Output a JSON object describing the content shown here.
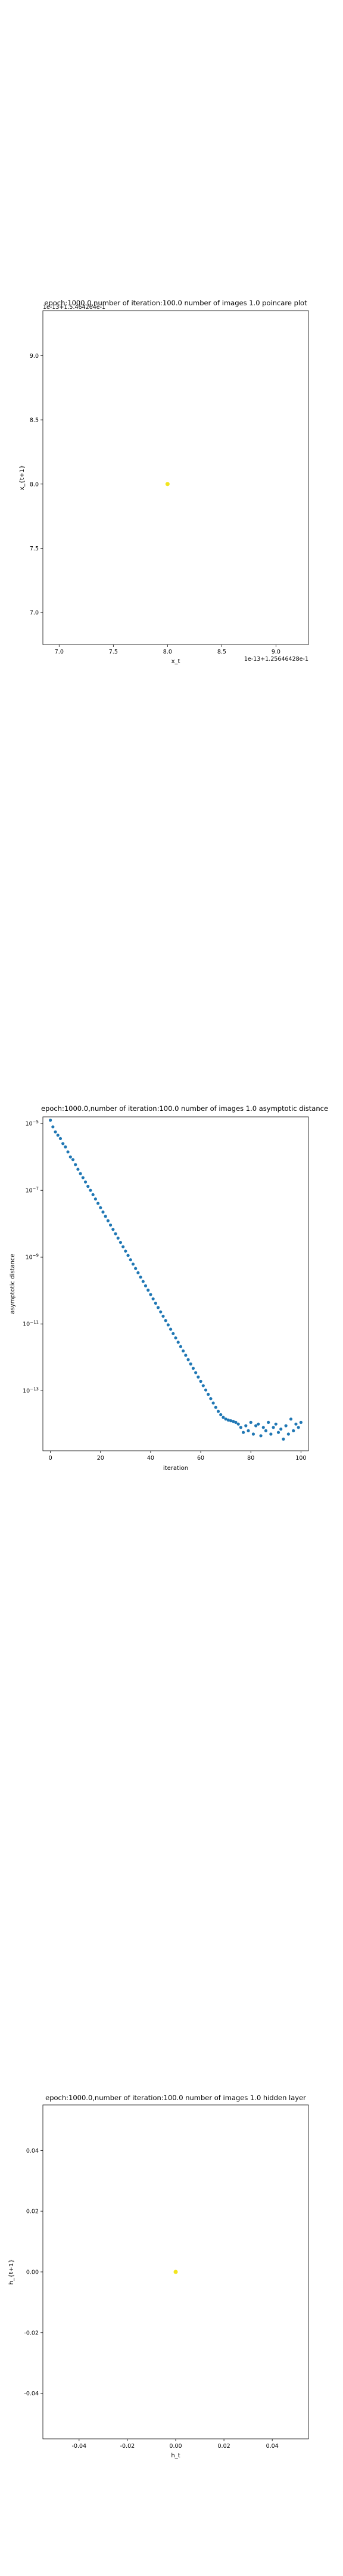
{
  "colors": {
    "point_yellow": "#f2e51e",
    "point_blue": "#1f77b4",
    "axis": "#000000"
  },
  "chart_data": [
    {
      "type": "scatter",
      "title": "epoch:1000.0,number of iteration:100.0 number of images 1.0 poincare plot",
      "offset_text_top": "1e-13+1.5.464264e-1",
      "offset_text_bottom": "1e-13+1.25646428e-1",
      "xlabel": "x_t",
      "ylabel": "x_{t+1}",
      "xlim": [
        6.85,
        9.3
      ],
      "ylim": [
        6.75,
        9.35
      ],
      "xticks": [
        "7.0",
        "7.5",
        "8.0",
        "8.5",
        "9.0"
      ],
      "xtick_values": [
        7.0,
        7.5,
        8.0,
        8.5,
        9.0
      ],
      "yticks": [
        "9.0",
        "8.5",
        "8.0",
        "7.5",
        "7.0"
      ],
      "ytick_values": [
        9.0,
        8.5,
        8.0,
        7.5,
        7.0
      ],
      "points": [
        {
          "x": 8.0,
          "y": 8.0
        }
      ],
      "point_color": "yellow"
    },
    {
      "type": "scatter",
      "title": "epoch:1000.0,number of iteration:100.0  number of images 1.0 asymptotic distance",
      "xlabel": "iteration",
      "ylabel": "asymptotic distance",
      "xlim": [
        -3,
        103
      ],
      "yscale": "log",
      "ylim_log10": [
        -14.8,
        -4.8
      ],
      "xticks": [
        "0",
        "20",
        "40",
        "60",
        "80",
        "100"
      ],
      "xtick_values": [
        0,
        20,
        40,
        60,
        80,
        100
      ],
      "yticks": [
        "10^-5",
        "10^-7",
        "10^-9",
        "10^-11",
        "10^-13"
      ],
      "ytick_log10": [
        -5,
        -7,
        -9,
        -11,
        -13
      ],
      "series_log10": [
        -4.9,
        -5.1,
        -5.25,
        -5.35,
        -5.45,
        -5.6,
        -5.7,
        -5.85,
        -6.0,
        -6.08,
        -6.23,
        -6.37,
        -6.5,
        -6.62,
        -6.75,
        -6.88,
        -7.0,
        -7.13,
        -7.26,
        -7.39,
        -7.52,
        -7.65,
        -7.78,
        -7.91,
        -8.04,
        -8.17,
        -8.3,
        -8.43,
        -8.56,
        -8.69,
        -8.82,
        -8.95,
        -9.08,
        -9.21,
        -9.34,
        -9.47,
        -9.6,
        -9.73,
        -9.86,
        -9.99,
        -10.12,
        -10.25,
        -10.38,
        -10.51,
        -10.64,
        -10.77,
        -10.9,
        -11.03,
        -11.16,
        -11.29,
        -11.42,
        -11.55,
        -11.68,
        -11.81,
        -11.94,
        -12.07,
        -12.2,
        -12.33,
        -12.46,
        -12.59,
        -12.72,
        -12.85,
        -12.98,
        -13.11,
        -13.24,
        -13.37,
        -13.5,
        -13.62,
        -13.72,
        -13.8,
        -13.85,
        -13.88,
        -13.9,
        -13.92,
        -13.95,
        -14.0,
        -14.1,
        -14.25,
        -14.05,
        -14.2,
        -13.95,
        -14.3,
        -14.05,
        -14.0,
        -14.35,
        -14.1,
        -14.2,
        -13.95,
        -14.3,
        -14.1,
        -14.0,
        -14.25,
        -14.15,
        -14.45,
        -14.05,
        -14.3,
        -13.85,
        -14.2,
        -14.0,
        -14.1,
        -13.95
      ],
      "point_color": "blue"
    },
    {
      "type": "scatter",
      "title": "epoch:1000.0,number of iteration:100.0  number of images 1.0 hidden layer",
      "xlabel": "h_t",
      "ylabel": "h_{t+1}",
      "xlim": [
        -0.055,
        0.055
      ],
      "ylim": [
        -0.055,
        0.055
      ],
      "xticks": [
        "-0.04",
        "-0.02",
        "0.00",
        "0.02",
        "0.04"
      ],
      "xtick_values": [
        -0.04,
        -0.02,
        0.0,
        0.02,
        0.04
      ],
      "yticks": [
        "0.04",
        "0.02",
        "0.00",
        "-0.02",
        "-0.04"
      ],
      "ytick_values": [
        0.04,
        0.02,
        0.0,
        -0.02,
        -0.04
      ],
      "points": [
        {
          "x": 0.0,
          "y": 0.0
        }
      ],
      "point_color": "yellow"
    }
  ]
}
